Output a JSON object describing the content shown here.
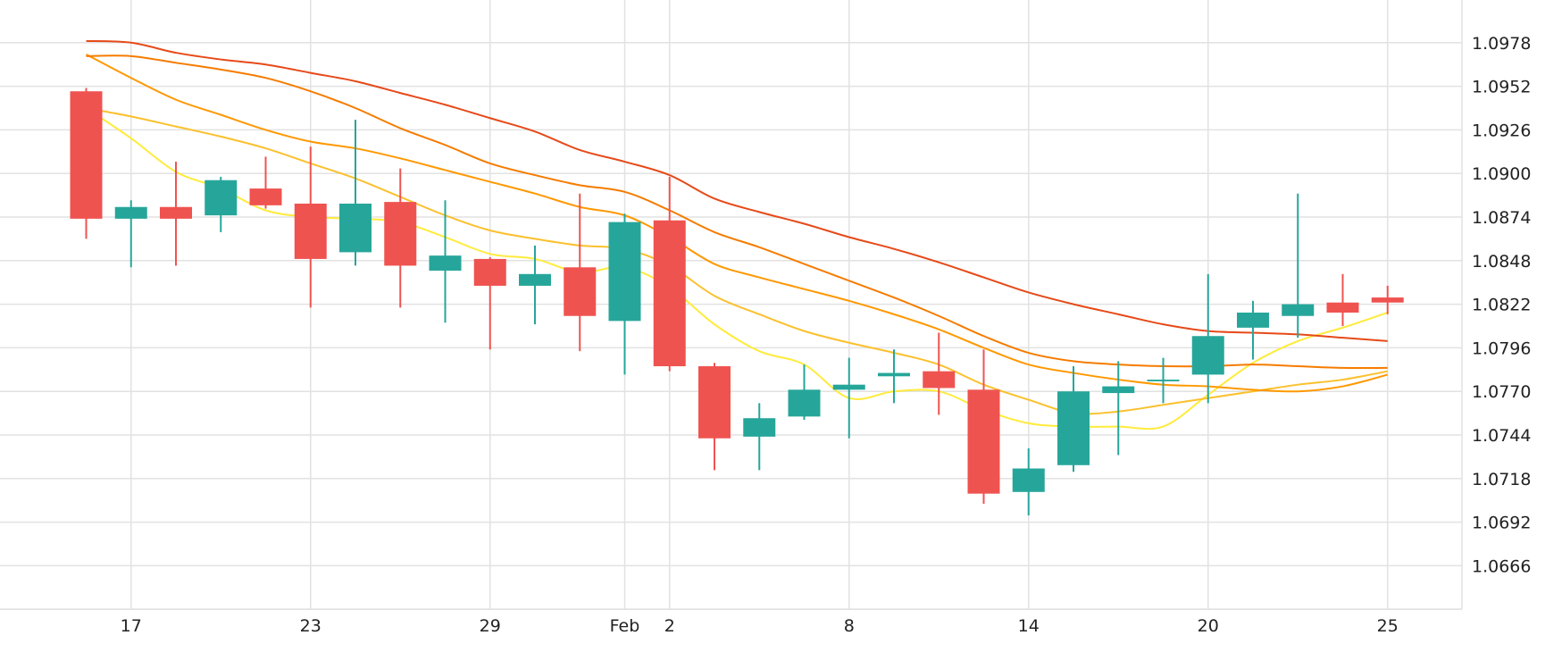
{
  "chart_data": {
    "type": "candlestick",
    "grid": true,
    "y_axis_side": "right",
    "ylim": [
      1.064,
      1.099
    ],
    "yticks": [
      "1.0978",
      "1.0952",
      "1.0926",
      "1.0900",
      "1.0874",
      "1.0848",
      "1.0822",
      "1.0796",
      "1.0770",
      "1.0744",
      "1.0718",
      "1.0692",
      "1.0666"
    ],
    "xticks": [
      {
        "i": 1,
        "label": "17"
      },
      {
        "i": 5,
        "label": "23"
      },
      {
        "i": 9,
        "label": "29"
      },
      {
        "i": 12,
        "label": "Feb"
      },
      {
        "i": 13,
        "label": "2"
      },
      {
        "i": 17,
        "label": "8"
      },
      {
        "i": 21,
        "label": "14"
      },
      {
        "i": 25,
        "label": "20"
      },
      {
        "i": 29,
        "label": "25"
      }
    ],
    "colors": {
      "up": "#26a69a",
      "down": "#ef5350",
      "grid": "#e2e2e2"
    },
    "candles": [
      {
        "o": 1.0949,
        "h": 1.0951,
        "l": 1.0861,
        "c": 1.0873
      },
      {
        "o": 1.0873,
        "h": 1.0884,
        "l": 1.0844,
        "c": 1.088
      },
      {
        "o": 1.088,
        "h": 1.0907,
        "l": 1.0845,
        "c": 1.0873
      },
      {
        "o": 1.0875,
        "h": 1.0898,
        "l": 1.0865,
        "c": 1.0896
      },
      {
        "o": 1.0891,
        "h": 1.091,
        "l": 1.0879,
        "c": 1.0881
      },
      {
        "o": 1.0882,
        "h": 1.0916,
        "l": 1.082,
        "c": 1.0849
      },
      {
        "o": 1.0853,
        "h": 1.0932,
        "l": 1.0845,
        "c": 1.0882
      },
      {
        "o": 1.0883,
        "h": 1.0903,
        "l": 1.082,
        "c": 1.0845
      },
      {
        "o": 1.0842,
        "h": 1.0884,
        "l": 1.0811,
        "c": 1.0851
      },
      {
        "o": 1.0849,
        "h": 1.085,
        "l": 1.0795,
        "c": 1.0833
      },
      {
        "o": 1.0833,
        "h": 1.0857,
        "l": 1.081,
        "c": 1.084
      },
      {
        "o": 1.0844,
        "h": 1.0888,
        "l": 1.0794,
        "c": 1.0815
      },
      {
        "o": 1.0812,
        "h": 1.0876,
        "l": 1.078,
        "c": 1.0871
      },
      {
        "o": 1.0872,
        "h": 1.0898,
        "l": 1.0782,
        "c": 1.0785
      },
      {
        "o": 1.0785,
        "h": 1.0787,
        "l": 1.0723,
        "c": 1.0742
      },
      {
        "o": 1.0743,
        "h": 1.0763,
        "l": 1.0723,
        "c": 1.0754
      },
      {
        "o": 1.0755,
        "h": 1.0786,
        "l": 1.0753,
        "c": 1.0771
      },
      {
        "o": 1.0771,
        "h": 1.079,
        "l": 1.0742,
        "c": 1.0774
      },
      {
        "o": 1.0779,
        "h": 1.0795,
        "l": 1.0763,
        "c": 1.0781
      },
      {
        "o": 1.0782,
        "h": 1.0805,
        "l": 1.0756,
        "c": 1.0772
      },
      {
        "o": 1.0771,
        "h": 1.0795,
        "l": 1.0703,
        "c": 1.0709
      },
      {
        "o": 1.071,
        "h": 1.0736,
        "l": 1.0696,
        "c": 1.0724
      },
      {
        "o": 1.0726,
        "h": 1.0785,
        "l": 1.0722,
        "c": 1.077
      },
      {
        "o": 1.0769,
        "h": 1.0788,
        "l": 1.0732,
        "c": 1.0773
      },
      {
        "o": 1.0776,
        "h": 1.079,
        "l": 1.0763,
        "c": 1.0777
      },
      {
        "o": 1.078,
        "h": 1.084,
        "l": 1.0763,
        "c": 1.0803
      },
      {
        "o": 1.0808,
        "h": 1.0824,
        "l": 1.0789,
        "c": 1.0817
      },
      {
        "o": 1.0815,
        "h": 1.0888,
        "l": 1.0802,
        "c": 1.0822
      },
      {
        "o": 1.0823,
        "h": 1.084,
        "l": 1.0809,
        "c": 1.0817
      },
      {
        "o": 1.0826,
        "h": 1.0833,
        "l": 1.0816,
        "c": 1.0823
      }
    ],
    "moving_averages": [
      {
        "color": "#ffeb3b",
        "points": [
          [
            0,
            1.0939
          ],
          [
            1,
            1.0921
          ],
          [
            2,
            1.0901
          ],
          [
            3,
            1.0891
          ],
          [
            4,
            1.0878
          ],
          [
            5,
            1.0874
          ],
          [
            6,
            1.0873
          ],
          [
            7,
            1.0871
          ],
          [
            8,
            1.0862
          ],
          [
            9,
            1.0852
          ],
          [
            10,
            1.0849
          ],
          [
            11,
            1.0841
          ],
          [
            12,
            1.0844
          ],
          [
            13,
            1.0832
          ],
          [
            14,
            1.081
          ],
          [
            15,
            1.0794
          ],
          [
            16,
            1.0786
          ],
          [
            17,
            1.0766
          ],
          [
            18,
            1.077
          ],
          [
            19,
            1.077
          ],
          [
            20,
            1.0759
          ],
          [
            21,
            1.0751
          ],
          [
            22,
            1.0749
          ],
          [
            23,
            1.0749
          ],
          [
            24,
            1.0749
          ],
          [
            25,
            1.0768
          ],
          [
            26,
            1.0787
          ],
          [
            27,
            1.08
          ],
          [
            28,
            1.0808
          ],
          [
            29,
            1.0817
          ]
        ]
      },
      {
        "color": "#fbc02d",
        "points": [
          [
            0,
            1.0939
          ],
          [
            1,
            1.0934
          ],
          [
            2,
            1.0928
          ],
          [
            3,
            1.0922
          ],
          [
            4,
            1.0915
          ],
          [
            5,
            1.0906
          ],
          [
            6,
            1.0897
          ],
          [
            7,
            1.0886
          ],
          [
            8,
            1.0875
          ],
          [
            9,
            1.0866
          ],
          [
            10,
            1.0861
          ],
          [
            11,
            1.0857
          ],
          [
            12,
            1.0855
          ],
          [
            13,
            1.0845
          ],
          [
            14,
            1.0827
          ],
          [
            15,
            1.0816
          ],
          [
            16,
            1.0806
          ],
          [
            17,
            1.0799
          ],
          [
            18,
            1.0793
          ],
          [
            19,
            1.0786
          ],
          [
            20,
            1.0774
          ],
          [
            21,
            1.0765
          ],
          [
            22,
            1.0757
          ],
          [
            23,
            1.0758
          ],
          [
            24,
            1.0762
          ],
          [
            25,
            1.0766
          ],
          [
            26,
            1.077
          ],
          [
            27,
            1.0774
          ],
          [
            28,
            1.0777
          ],
          [
            29,
            1.0782
          ]
        ]
      },
      {
        "color": "#ff9800",
        "points": [
          [
            0,
            1.0971
          ],
          [
            1,
            1.0957
          ],
          [
            2,
            1.0944
          ],
          [
            3,
            1.0935
          ],
          [
            4,
            1.0926
          ],
          [
            5,
            1.0919
          ],
          [
            6,
            1.0915
          ],
          [
            7,
            1.0909
          ],
          [
            8,
            1.0902
          ],
          [
            9,
            1.0895
          ],
          [
            10,
            1.0888
          ],
          [
            11,
            1.088
          ],
          [
            12,
            1.0875
          ],
          [
            13,
            1.0862
          ],
          [
            14,
            1.0846
          ],
          [
            15,
            1.0838
          ],
          [
            16,
            1.0831
          ],
          [
            17,
            1.0824
          ],
          [
            18,
            1.0816
          ],
          [
            19,
            1.0807
          ],
          [
            20,
            1.0796
          ],
          [
            21,
            1.0786
          ],
          [
            22,
            1.0781
          ],
          [
            23,
            1.0777
          ],
          [
            24,
            1.0774
          ],
          [
            25,
            1.0773
          ],
          [
            26,
            1.0771
          ],
          [
            27,
            1.077
          ],
          [
            28,
            1.0773
          ],
          [
            29,
            1.078
          ]
        ]
      },
      {
        "color": "#f57c00",
        "points": [
          [
            0,
            1.097
          ],
          [
            1,
            1.097
          ],
          [
            2,
            1.0966
          ],
          [
            3,
            1.0962
          ],
          [
            4,
            1.0957
          ],
          [
            5,
            1.0949
          ],
          [
            6,
            1.0939
          ],
          [
            7,
            1.0927
          ],
          [
            8,
            1.0917
          ],
          [
            9,
            1.0906
          ],
          [
            10,
            1.0899
          ],
          [
            11,
            1.0893
          ],
          [
            12,
            1.0889
          ],
          [
            13,
            1.0878
          ],
          [
            14,
            1.0865
          ],
          [
            15,
            1.0856
          ],
          [
            16,
            1.0846
          ],
          [
            17,
            1.0836
          ],
          [
            18,
            1.0826
          ],
          [
            19,
            1.0815
          ],
          [
            20,
            1.0803
          ],
          [
            21,
            1.0793
          ],
          [
            22,
            1.0788
          ],
          [
            23,
            1.0786
          ],
          [
            24,
            1.0785
          ],
          [
            25,
            1.0785
          ],
          [
            26,
            1.0786
          ],
          [
            27,
            1.0785
          ],
          [
            28,
            1.0784
          ],
          [
            29,
            1.0784
          ]
        ]
      },
      {
        "color": "#e64a19",
        "points": [
          [
            0,
            1.0979
          ],
          [
            1,
            1.0978
          ],
          [
            2,
            1.0972
          ],
          [
            3,
            1.0968
          ],
          [
            4,
            1.0965
          ],
          [
            5,
            1.096
          ],
          [
            6,
            1.0955
          ],
          [
            7,
            1.0948
          ],
          [
            8,
            1.0941
          ],
          [
            9,
            1.0933
          ],
          [
            10,
            1.0925
          ],
          [
            11,
            1.0914
          ],
          [
            12,
            1.0907
          ],
          [
            13,
            1.0899
          ],
          [
            14,
            1.0885
          ],
          [
            15,
            1.0877
          ],
          [
            16,
            1.087
          ],
          [
            17,
            1.0862
          ],
          [
            18,
            1.0855
          ],
          [
            19,
            1.0847
          ],
          [
            20,
            1.0838
          ],
          [
            21,
            1.0829
          ],
          [
            22,
            1.0822
          ],
          [
            23,
            1.0816
          ],
          [
            24,
            1.081
          ],
          [
            25,
            1.0806
          ],
          [
            26,
            1.0805
          ],
          [
            27,
            1.0804
          ],
          [
            28,
            1.0802
          ],
          [
            29,
            1.08
          ]
        ]
      }
    ]
  }
}
